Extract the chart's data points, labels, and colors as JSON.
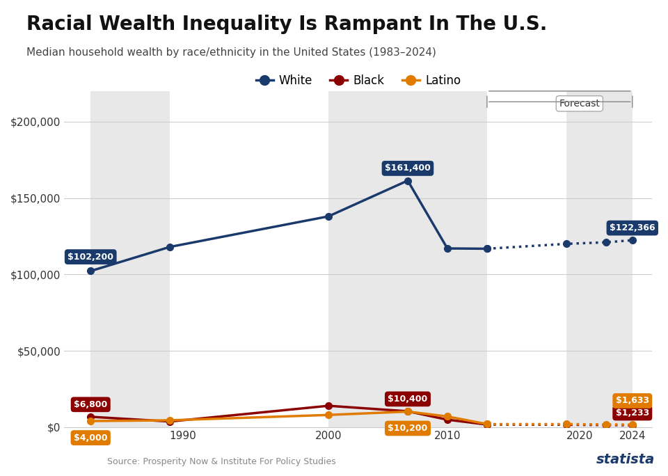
{
  "title": "Racial Wealth Inequality Is Rampant In The U.S.",
  "subtitle": "Median household wealth by race/ethnicity in the United States (1983–2024)",
  "source": "Source: Prosperity Now & Institute For Policy Studies",
  "years_solid": [
    1983,
    1989,
    2001,
    2007,
    2010,
    2013
  ],
  "years_dotted": [
    2013,
    2019,
    2022,
    2024
  ],
  "white_solid": [
    102200,
    118000,
    138000,
    161400,
    117000,
    116800
  ],
  "white_dotted": [
    116800,
    120000,
    121000,
    122366
  ],
  "black_solid": [
    6800,
    3700,
    14000,
    10400,
    4900,
    1700
  ],
  "black_dotted": [
    1700,
    1600,
    1400,
    1233
  ],
  "latino_solid": [
    4000,
    4500,
    8000,
    10200,
    7000,
    2000
  ],
  "latino_dotted": [
    2000,
    2000,
    1800,
    1633
  ],
  "white_color": "#1a3a6b",
  "black_color": "#8b0000",
  "latino_color": "#e07b00",
  "annotation_white_1983": "$102,200",
  "annotation_white_2007": "$161,400",
  "annotation_white_2024": "$122,366",
  "annotation_black_1983": "$6,800",
  "annotation_black_2007": "$10,400",
  "annotation_black_2024": "$1,233",
  "annotation_latino_1983": "$4,000",
  "annotation_latino_2007": "$10,200",
  "annotation_latino_2024": "$1,633",
  "bg_color": "#ffffff",
  "band_color": "#e8e8e8",
  "ylim": [
    0,
    220000
  ],
  "yticks": [
    0,
    50000,
    100000,
    150000,
    200000
  ]
}
